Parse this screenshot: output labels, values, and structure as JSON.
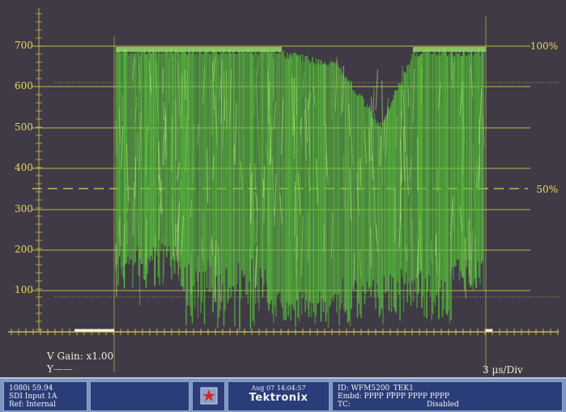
{
  "waveform": {
    "y_axis_labels": [
      "700",
      "600",
      "500",
      "400",
      "300",
      "200",
      "100"
    ],
    "percent_top": "100%",
    "percent_mid": "50%",
    "v_gain": "V Gain: x1.00",
    "channel": "Y",
    "time_div": "3 µs/Div",
    "trace_color": "#59c83a",
    "graticule_color": "#d9cf4f"
  },
  "status": {
    "format": "1080i 59.94",
    "input": "SDI Input 1A",
    "ref": "Ref: Internal",
    "datetime": "Aug 07 14:04:57",
    "brand": "Tektronix",
    "id": "ID: WFM5200_TEK1",
    "embd": "Embd: PPPP PPPP PPPP PPPP",
    "tc_label": "TC:",
    "tc_value": "Disabled"
  }
}
